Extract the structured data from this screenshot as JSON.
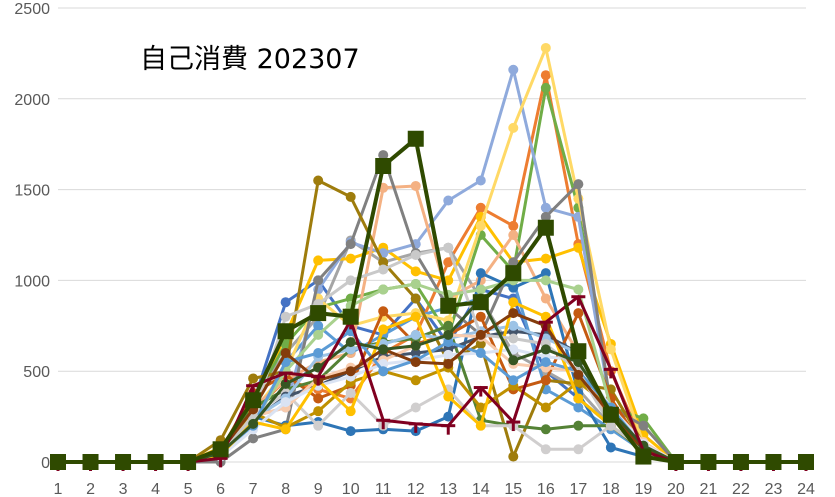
{
  "chart_data": {
    "type": "line",
    "title": "自己消費 202307",
    "xlabel": "",
    "ylabel": "",
    "x": [
      1,
      2,
      3,
      4,
      5,
      6,
      7,
      8,
      9,
      10,
      11,
      12,
      13,
      14,
      15,
      16,
      17,
      18,
      19,
      20,
      21,
      22,
      23,
      24
    ],
    "y_ticks": [
      0,
      500,
      1000,
      1500,
      2000,
      2500
    ],
    "ylim": [
      0,
      2500
    ],
    "grid": true,
    "legend": "none",
    "series": [
      {
        "color": "#4472c4",
        "marker": "circle",
        "values": [
          0,
          0,
          0,
          0,
          0,
          50,
          320,
          880,
          1000,
          750,
          700,
          900,
          650,
          950,
          900,
          500,
          350,
          200,
          50,
          0,
          0,
          0,
          0,
          0
        ]
      },
      {
        "color": "#ed7d31",
        "marker": "circle",
        "values": [
          0,
          0,
          0,
          0,
          0,
          40,
          280,
          450,
          400,
          350,
          600,
          700,
          1100,
          1400,
          1300,
          2130,
          1200,
          500,
          100,
          0,
          0,
          0,
          0,
          0
        ]
      },
      {
        "color": "#a5a5a5",
        "marker": "circle",
        "values": [
          0,
          0,
          0,
          0,
          0,
          60,
          350,
          600,
          800,
          1220,
          1100,
          1150,
          1180,
          900,
          600,
          500,
          400,
          200,
          50,
          0,
          0,
          0,
          0,
          0
        ]
      },
      {
        "color": "#ffc000",
        "marker": "circle",
        "values": [
          0,
          0,
          0,
          0,
          0,
          80,
          300,
          700,
          1110,
          1120,
          1180,
          1050,
          1000,
          1350,
          1100,
          1120,
          1180,
          650,
          150,
          0,
          0,
          0,
          0,
          0
        ]
      },
      {
        "color": "#5b9bd5",
        "marker": "circle",
        "values": [
          0,
          0,
          0,
          0,
          0,
          30,
          200,
          550,
          750,
          600,
          700,
          800,
          850,
          900,
          1000,
          400,
          300,
          180,
          60,
          0,
          0,
          0,
          0,
          0
        ]
      },
      {
        "color": "#70ad47",
        "marker": "circle",
        "values": [
          0,
          0,
          0,
          0,
          0,
          70,
          330,
          650,
          850,
          900,
          950,
          980,
          700,
          1250,
          1050,
          2060,
          1400,
          300,
          240,
          0,
          0,
          0,
          0,
          0
        ]
      },
      {
        "color": "#8faadc",
        "marker": "circle",
        "values": [
          0,
          0,
          0,
          0,
          0,
          50,
          250,
          300,
          950,
          1210,
          1150,
          1200,
          1440,
          1550,
          2160,
          1400,
          1350,
          300,
          80,
          0,
          0,
          0,
          0,
          0
        ]
      },
      {
        "color": "#ffd966",
        "marker": "circle",
        "values": [
          0,
          0,
          0,
          0,
          0,
          60,
          280,
          500,
          900,
          750,
          800,
          820,
          780,
          1300,
          1840,
          2280,
          1450,
          620,
          100,
          0,
          0,
          0,
          0,
          0
        ]
      },
      {
        "color": "#f4b183",
        "marker": "circle",
        "values": [
          0,
          0,
          0,
          0,
          0,
          40,
          300,
          450,
          550,
          600,
          1510,
          1520,
          900,
          1000,
          1250,
          900,
          600,
          200,
          60,
          0,
          0,
          0,
          0,
          0
        ]
      },
      {
        "color": "#808080",
        "marker": "circle",
        "values": [
          0,
          0,
          0,
          0,
          0,
          0,
          130,
          180,
          1000,
          1200,
          1690,
          1150,
          850,
          700,
          1100,
          1350,
          1530,
          300,
          200,
          0,
          0,
          0,
          0,
          0
        ]
      },
      {
        "color": "#9e7c0c",
        "marker": "circle",
        "values": [
          0,
          0,
          0,
          0,
          0,
          120,
          460,
          500,
          1550,
          1460,
          1100,
          900,
          550,
          650,
          30,
          450,
          430,
          400,
          100,
          0,
          0,
          0,
          0,
          0
        ]
      },
      {
        "color": "#2e75b6",
        "marker": "circle",
        "values": [
          0,
          0,
          0,
          0,
          0,
          50,
          250,
          200,
          220,
          170,
          180,
          170,
          250,
          1040,
          960,
          1040,
          380,
          80,
          30,
          0,
          0,
          0,
          0,
          0
        ]
      },
      {
        "color": "#c55a11",
        "marker": "circle",
        "values": [
          0,
          0,
          0,
          0,
          0,
          60,
          380,
          480,
          350,
          420,
          830,
          650,
          700,
          800,
          400,
          450,
          820,
          350,
          80,
          0,
          0,
          0,
          0,
          0
        ]
      },
      {
        "color": "#548235",
        "marker": "circle",
        "values": [
          0,
          0,
          0,
          0,
          0,
          50,
          300,
          400,
          450,
          620,
          660,
          680,
          750,
          230,
          200,
          180,
          200,
          200,
          60,
          0,
          0,
          0,
          0,
          0
        ]
      },
      {
        "color": "#bf9000",
        "marker": "circle",
        "values": [
          0,
          0,
          0,
          0,
          0,
          70,
          270,
          190,
          280,
          440,
          500,
          450,
          520,
          300,
          420,
          300,
          440,
          300,
          80,
          0,
          0,
          0,
          0,
          0
        ]
      },
      {
        "color": "#a9d18e",
        "marker": "circle",
        "values": [
          0,
          0,
          0,
          0,
          0,
          40,
          220,
          500,
          700,
          860,
          950,
          980,
          920,
          950,
          1000,
          1000,
          950,
          300,
          100,
          0,
          0,
          0,
          0,
          0
        ]
      },
      {
        "color": "#d0cece",
        "marker": "circle",
        "values": [
          0,
          0,
          0,
          0,
          0,
          30,
          260,
          380,
          200,
          380,
          200,
          300,
          400,
          200,
          200,
          70,
          70,
          200,
          70,
          0,
          0,
          0,
          0,
          0
        ]
      },
      {
        "color": "#44546a",
        "marker": "circle",
        "values": [
          0,
          0,
          0,
          0,
          0,
          50,
          230,
          360,
          420,
          500,
          580,
          600,
          620,
          690,
          720,
          700,
          600,
          250,
          70,
          0,
          0,
          0,
          0,
          0
        ]
      },
      {
        "color": "#9dc3e6",
        "marker": "circle",
        "values": [
          0,
          0,
          0,
          0,
          0,
          60,
          240,
          350,
          580,
          620,
          650,
          700,
          680,
          720,
          750,
          680,
          600,
          260,
          90,
          0,
          0,
          0,
          0,
          0
        ]
      },
      {
        "color": "#f8cbad",
        "marker": "circle",
        "values": [
          0,
          0,
          0,
          0,
          0,
          50,
          250,
          300,
          460,
          520,
          560,
          640,
          700,
          690,
          540,
          520,
          500,
          300,
          110,
          0,
          0,
          0,
          0,
          0
        ]
      },
      {
        "color": "#dae3f3",
        "marker": "circle",
        "values": [
          0,
          0,
          0,
          0,
          0,
          30,
          180,
          330,
          420,
          470,
          540,
          560,
          590,
          600,
          620,
          580,
          560,
          300,
          100,
          0,
          0,
          0,
          0,
          0
        ]
      },
      {
        "color": "#5b9bd5",
        "marker": "circle",
        "values": [
          0,
          0,
          0,
          0,
          0,
          70,
          200,
          550,
          600,
          720,
          500,
          560,
          660,
          600,
          450,
          550,
          500,
          300,
          80,
          0,
          0,
          0,
          0,
          0
        ]
      },
      {
        "color": "#ffc000",
        "marker": "circle",
        "values": [
          0,
          0,
          0,
          0,
          0,
          40,
          220,
          180,
          450,
          280,
          730,
          800,
          360,
          200,
          880,
          800,
          350,
          200,
          70,
          0,
          0,
          0,
          0,
          0
        ]
      },
      {
        "color": "#c9c9c9",
        "marker": "circle",
        "values": [
          0,
          0,
          0,
          0,
          0,
          50,
          250,
          800,
          870,
          1000,
          1060,
          1140,
          1180,
          700,
          680,
          650,
          500,
          200,
          70,
          0,
          0,
          0,
          0,
          0
        ]
      },
      {
        "color": "#843c0c",
        "marker": "circle",
        "values": [
          0,
          0,
          0,
          0,
          0,
          60,
          290,
          600,
          450,
          500,
          620,
          550,
          540,
          700,
          820,
          750,
          480,
          260,
          70,
          0,
          0,
          0,
          0,
          0
        ]
      },
      {
        "color": "#375623",
        "marker": "circle",
        "values": [
          0,
          0,
          0,
          0,
          0,
          50,
          210,
          430,
          520,
          660,
          620,
          640,
          700,
          900,
          560,
          620,
          550,
          280,
          90,
          0,
          0,
          0,
          0,
          0
        ]
      },
      {
        "color": "#800020",
        "marker": "bar-tick",
        "values": [
          0,
          0,
          0,
          0,
          0,
          20,
          420,
          490,
          470,
          780,
          230,
          210,
          200,
          410,
          220,
          770,
          910,
          510,
          60,
          0,
          0,
          0,
          0,
          0
        ]
      },
      {
        "color": "#2f4a00",
        "marker": "square",
        "values": [
          0,
          0,
          0,
          0,
          0,
          70,
          340,
          720,
          820,
          800,
          1630,
          1780,
          860,
          880,
          1040,
          1290,
          610,
          260,
          30,
          0,
          0,
          0,
          0,
          0
        ]
      }
    ]
  }
}
